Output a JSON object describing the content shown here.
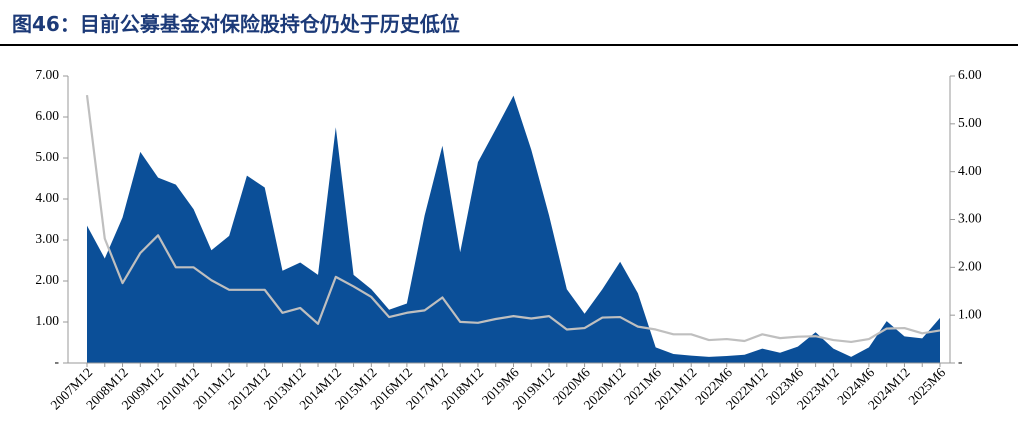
{
  "chart_data": {
    "type": "area_line",
    "title": "图46：目前公募基金对保险股持仓仍处于历史低位",
    "categories": [
      "2007M12",
      null,
      "2008M12",
      null,
      "2009M12",
      null,
      "2010M12",
      null,
      "2011M12",
      null,
      "2012M12",
      null,
      "2013M12",
      null,
      "2014M12",
      null,
      "2015M12",
      null,
      "2016M12",
      null,
      "2017M12",
      null,
      "2018M12",
      null,
      "2019M6",
      null,
      "2019M12",
      null,
      "2020M6",
      null,
      "2020M12",
      null,
      "2021M6",
      null,
      "2021M12",
      null,
      "2022M6",
      null,
      "2022M12",
      null,
      "2023M6",
      null,
      "2023M12",
      null,
      "2024M6",
      null,
      "2024M12",
      null,
      "2025M6"
    ],
    "series": [
      {
        "color": "#0b4f98",
        "kind": "area",
        "values": [
          3.35,
          2.55,
          3.55,
          5.15,
          4.52,
          4.35,
          3.75,
          2.75,
          3.1,
          4.57,
          4.28,
          2.25,
          2.45,
          2.15,
          5.75,
          2.15,
          1.8,
          1.3,
          1.45,
          3.6,
          5.3,
          2.7,
          4.9,
          5.7,
          6.52,
          5.2,
          3.6,
          1.8,
          1.2,
          1.8,
          2.47,
          1.7,
          0.38,
          0.22,
          0.18,
          0.15,
          0.17,
          0.2,
          0.35,
          0.25,
          0.4,
          0.75,
          0.35,
          0.15,
          0.38,
          1.02,
          0.65,
          0.6,
          1.1
        ]
      },
      {
        "color": "#bfbfbf",
        "kind": "line",
        "axis": "y2",
        "values": [
          5.6,
          2.6,
          1.67,
          2.3,
          2.67,
          2.0,
          2.0,
          1.73,
          1.53,
          1.53,
          1.53,
          1.05,
          1.15,
          0.82,
          1.8,
          1.6,
          1.38,
          0.96,
          1.05,
          1.1,
          1.37,
          0.86,
          0.84,
          0.92,
          0.98,
          0.93,
          0.98,
          0.7,
          0.73,
          0.95,
          0.96,
          0.76,
          0.7,
          0.6,
          0.6,
          0.48,
          0.5,
          0.46,
          0.6,
          0.52,
          0.55,
          0.56,
          0.48,
          0.44,
          0.5,
          0.72,
          0.73,
          0.62,
          0.68
        ]
      }
    ],
    "ylim": [
      0,
      7
    ],
    "yticks": [
      {
        "value": 0,
        "label": "-"
      },
      {
        "value": 1,
        "label": "1.00"
      },
      {
        "value": 2,
        "label": "2.00"
      },
      {
        "value": 3,
        "label": "3.00"
      },
      {
        "value": 4,
        "label": "4.00"
      },
      {
        "value": 5,
        "label": "5.00"
      },
      {
        "value": 6,
        "label": "6.00"
      },
      {
        "value": 7,
        "label": "7.00"
      }
    ],
    "y2lim": [
      0,
      6
    ],
    "y2ticks": [
      {
        "value": 0,
        "label": "-"
      },
      {
        "value": 1,
        "label": "1.00"
      },
      {
        "value": 2,
        "label": "2.00"
      },
      {
        "value": 3,
        "label": "3.00"
      },
      {
        "value": 4,
        "label": "4.00"
      },
      {
        "value": 5,
        "label": "5.00"
      },
      {
        "value": 6,
        "label": "6.00"
      }
    ]
  }
}
